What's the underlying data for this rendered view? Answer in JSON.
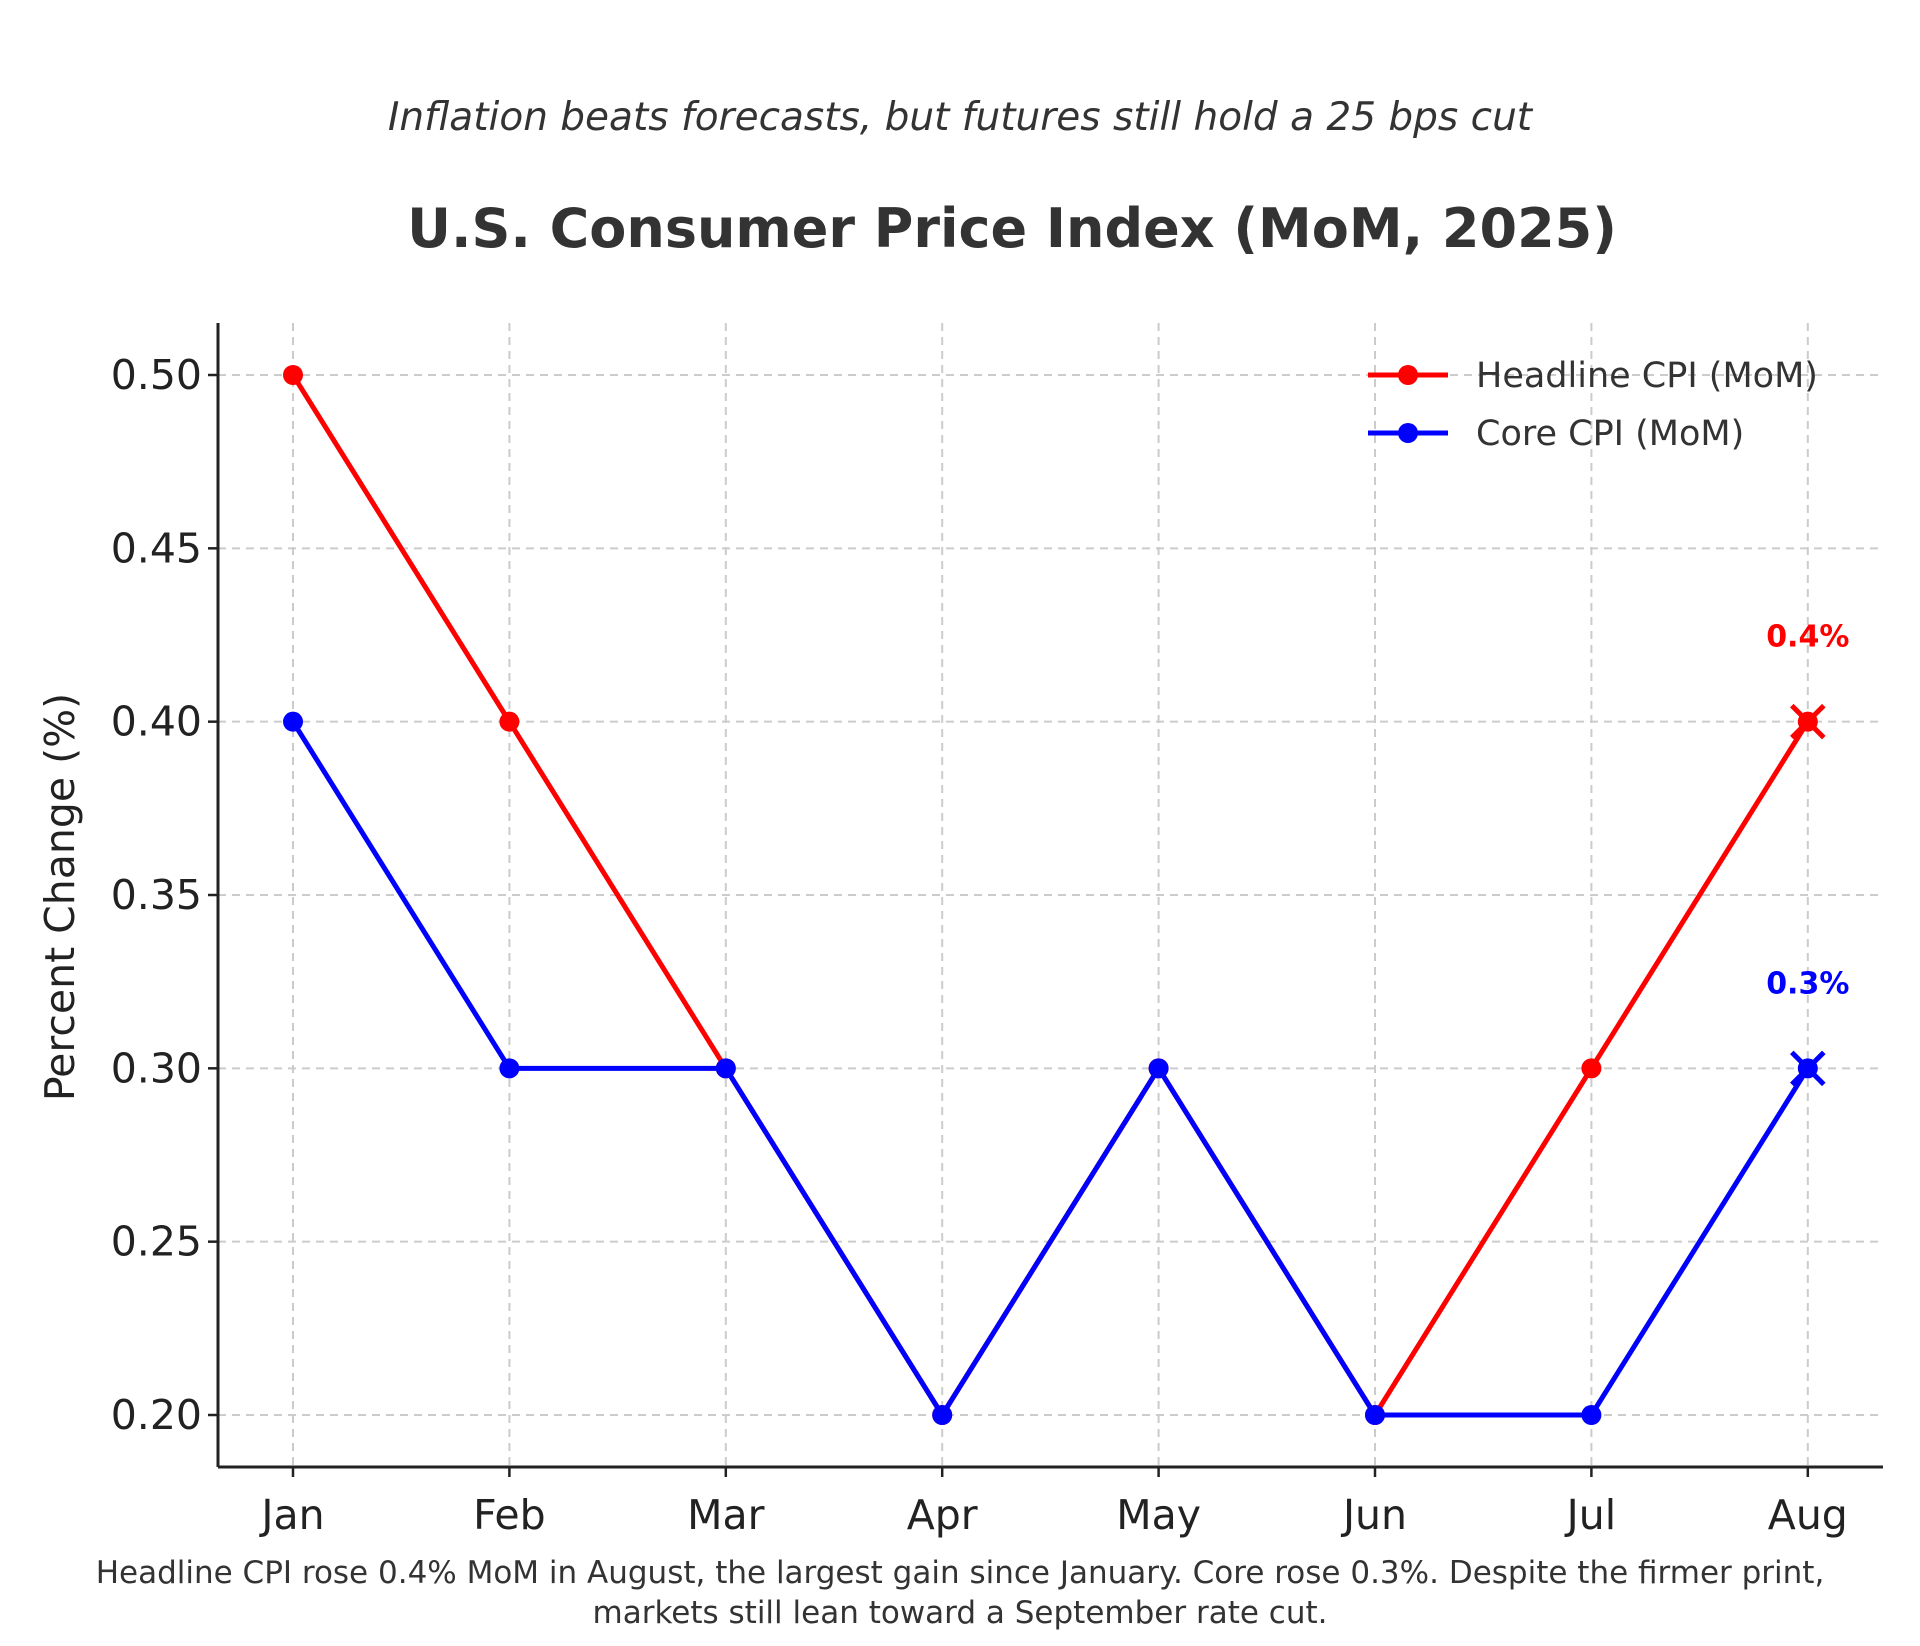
{
  "subtitle": "Inflation beats forecasts, but futures still hold a 25 bps cut",
  "caption_lines": [
    "Headline CPI rose 0.4% MoM in August, the largest gain since January. Core rose 0.3%. Despite the firmer print,",
    "markets still lean toward a September rate cut."
  ],
  "chart_data": {
    "type": "line",
    "title": "U.S. Consumer Price Index (MoM, 2025)",
    "xlabel": "",
    "ylabel": "Percent Change (%)",
    "categories": [
      "Jan",
      "Feb",
      "Mar",
      "Apr",
      "May",
      "Jun",
      "Jul",
      "Aug"
    ],
    "ylim": [
      0.185,
      0.515
    ],
    "yticks": [
      "0.20",
      "0.25",
      "0.30",
      "0.35",
      "0.40",
      "0.45",
      "0.50"
    ],
    "ytick_values": [
      0.2,
      0.25,
      0.3,
      0.35,
      0.4,
      0.45,
      0.5
    ],
    "grid": true,
    "legend_position": "top-right",
    "series": [
      {
        "name": "Headline CPI (MoM)",
        "color": "#ff0000",
        "values": [
          0.5,
          0.4,
          0.3,
          0.2,
          0.3,
          0.2,
          0.3,
          0.4
        ],
        "annotation": "0.4%"
      },
      {
        "name": "Core CPI (MoM)",
        "color": "#0000ff",
        "values": [
          0.4,
          0.3,
          0.3,
          0.2,
          0.3,
          0.2,
          0.2,
          0.3
        ],
        "annotation": "0.3%"
      }
    ]
  }
}
